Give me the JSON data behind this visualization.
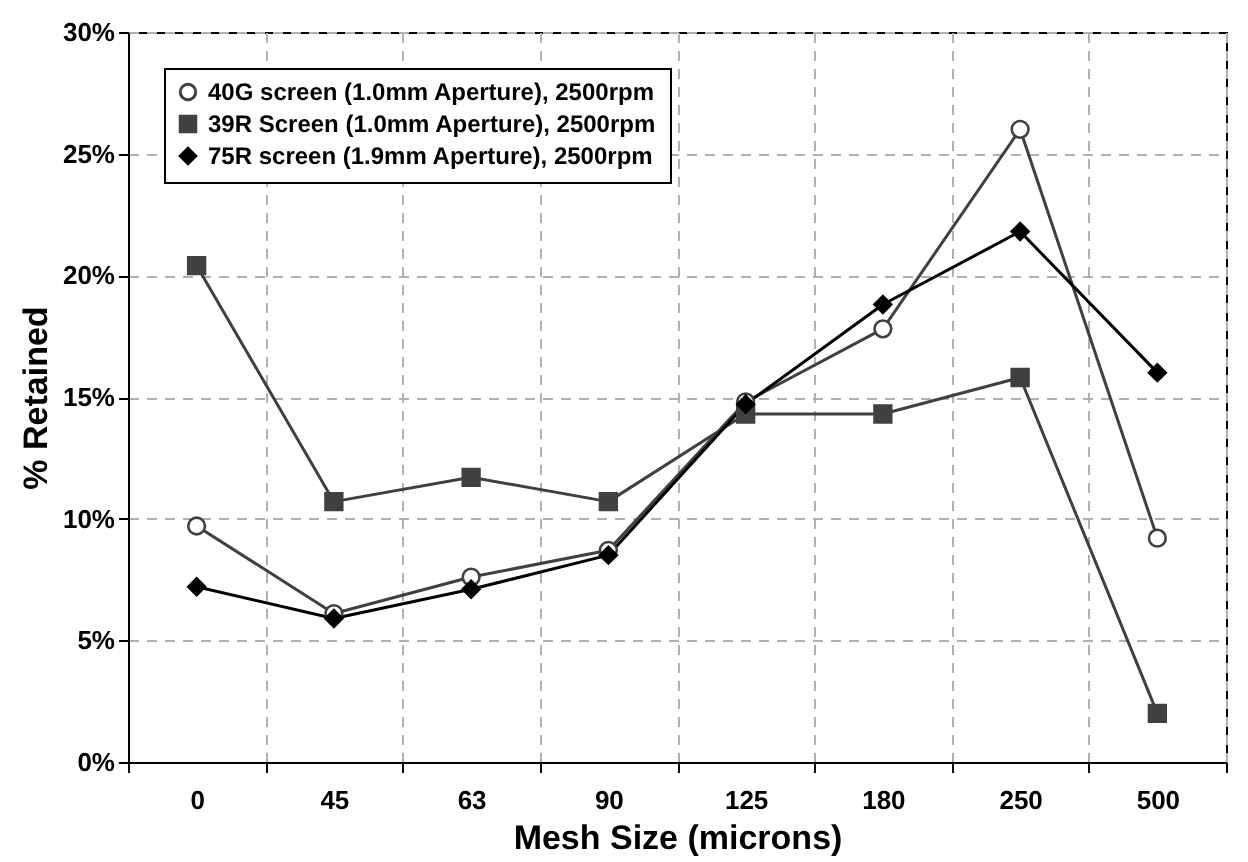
{
  "chart_data": {
    "type": "line",
    "xlabel": "Mesh Size (microns)",
    "ylabel": "% Retained",
    "categories": [
      "0",
      "45",
      "63",
      "90",
      "125",
      "180",
      "250",
      "500"
    ],
    "series": [
      {
        "name": "40G screen (1.0mm Aperture), 2500rpm",
        "color": "#404040",
        "marker": "circle",
        "values": [
          9.7,
          6.1,
          7.6,
          8.7,
          14.8,
          17.8,
          26.0,
          9.2
        ]
      },
      {
        "name": "39R Screen (1.0mm Aperture), 2500rpm",
        "color": "#404040",
        "marker": "square",
        "values": [
          20.4,
          10.7,
          11.7,
          10.7,
          14.3,
          14.3,
          15.8,
          2.0
        ]
      },
      {
        "name": "75R screen (1.9mm Aperture), 2500rpm",
        "color": "#000000",
        "marker": "diamond",
        "values": [
          7.2,
          5.9,
          7.1,
          8.5,
          14.7,
          18.8,
          21.8,
          16.0
        ]
      }
    ],
    "ylim": [
      0,
      30
    ],
    "yticks": [
      {
        "value": 0,
        "label": "0%"
      },
      {
        "value": 5,
        "label": "5%"
      },
      {
        "value": 10,
        "label": "10%"
      },
      {
        "value": 15,
        "label": "15%"
      },
      {
        "value": 20,
        "label": "20%"
      },
      {
        "value": 25,
        "label": "25%"
      },
      {
        "value": 30,
        "label": "30%"
      }
    ],
    "grid": true,
    "legend": "top left"
  }
}
